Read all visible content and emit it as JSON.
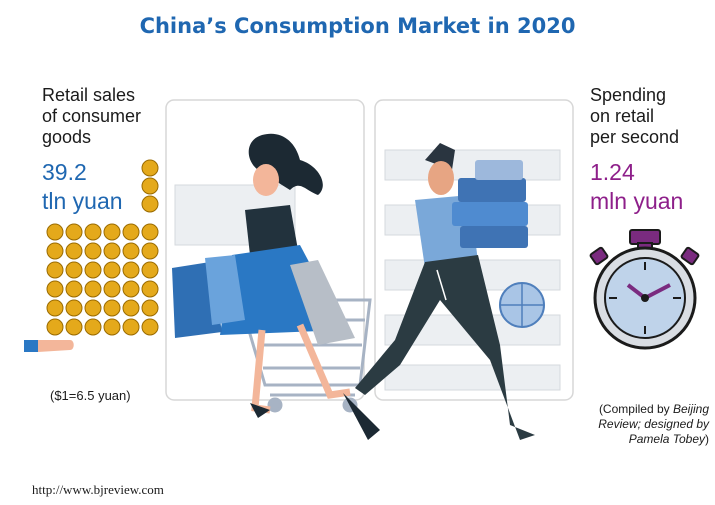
{
  "title": "China’s Consumption Market in 2020",
  "left": {
    "label": "Retail sales\nof consumer\ngoods",
    "value_line1": "39.2",
    "value_line2": "tln yuan",
    "coin_icon": "yuan-coin-icon"
  },
  "right": {
    "label": "Spending\non retail\nper second",
    "value_line1": "1.24",
    "value_line2": "mln yuan",
    "icon": "stopwatch-icon"
  },
  "exchange_rate": "($1=6.5 yuan)",
  "credit": {
    "prefix": "(Compiled by ",
    "source": "Beijing Review; designed by Pamela Tobey",
    "suffix": ")"
  },
  "url": "http://www.bjreview.com",
  "colors": {
    "title_blue": "#1f67b1",
    "value_blue": "#1f67b1",
    "value_purple": "#8e1f8a",
    "coin_gold": "#e4a91b",
    "stopwatch_purple": "#7a2b7f"
  }
}
